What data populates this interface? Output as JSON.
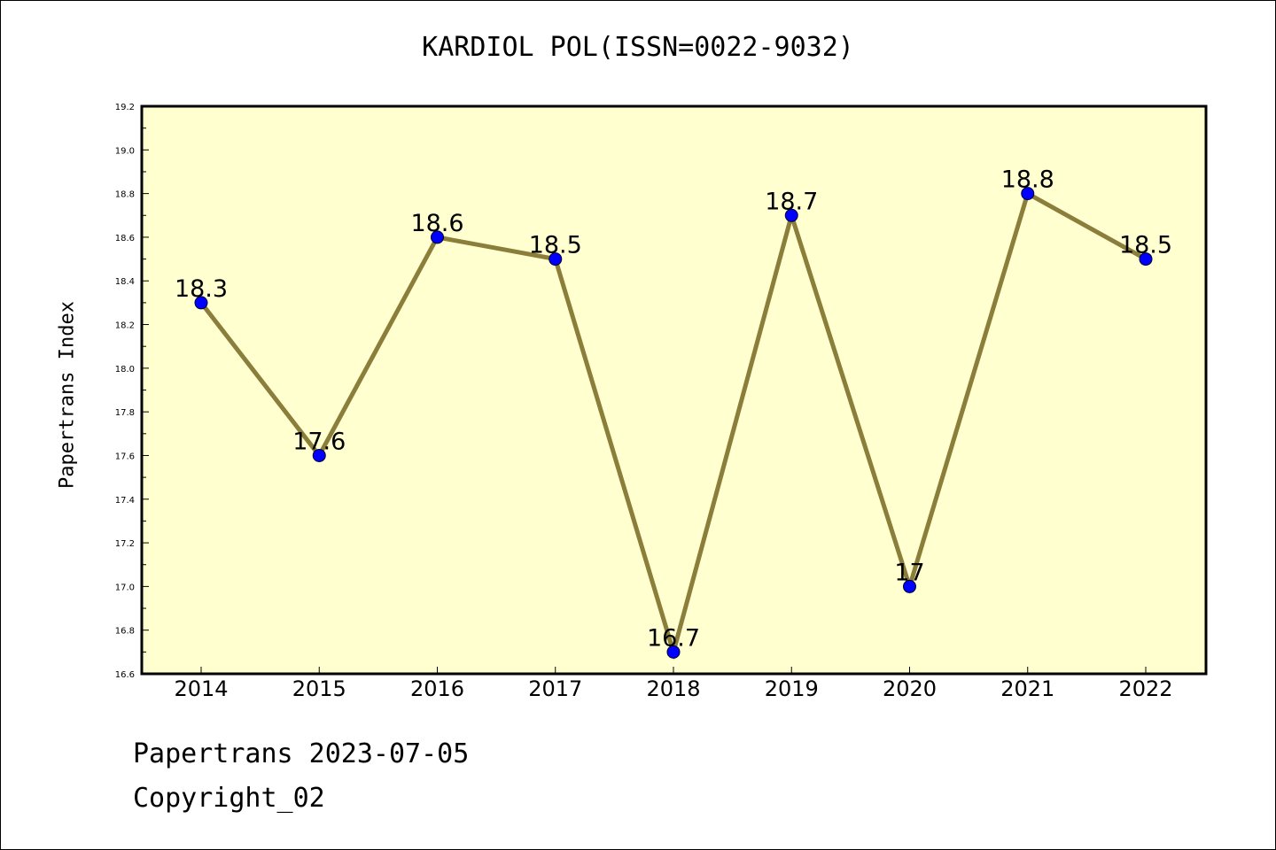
{
  "chart_data": {
    "type": "line",
    "title": "KARDIOL POL(ISSN=0022-9032)",
    "xlabel": "",
    "ylabel": "Papertrans Index",
    "categories": [
      "2014",
      "2015",
      "2016",
      "2017",
      "2018",
      "2019",
      "2020",
      "2021",
      "2022"
    ],
    "series": [
      {
        "values": [
          18.3,
          17.6,
          18.6,
          18.5,
          16.7,
          18.7,
          17.0,
          18.8,
          18.5
        ],
        "labels": [
          "18.3",
          "17.6",
          "18.6",
          "18.5",
          "16.7",
          "18.7",
          "17",
          "18.8",
          "18.5"
        ],
        "line_color": "#8B7D3A",
        "marker_color": "#0000FF"
      }
    ],
    "ylim": [
      16.6,
      19.2
    ],
    "yticks": [
      "16.6",
      "16.8",
      "17.0",
      "17.2",
      "17.4",
      "17.6",
      "17.8",
      "18.0",
      "18.2",
      "18.4",
      "18.6",
      "18.8",
      "19.0",
      "19.2"
    ],
    "plot_background": "#FFFFD0",
    "grid": false,
    "legend": "none"
  },
  "footer": {
    "date_line": "Papertrans 2023-07-05",
    "copyright": "Copyright_02"
  }
}
